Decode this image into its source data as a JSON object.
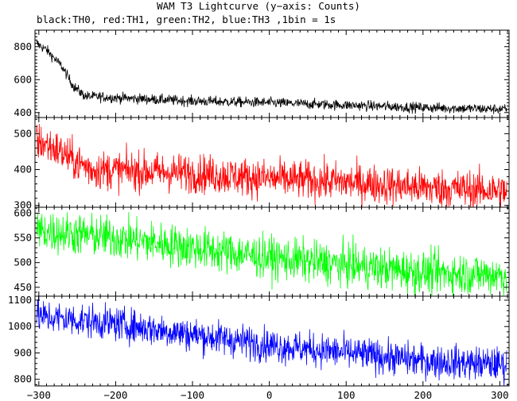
{
  "title": "WAM T3 Lightcurve (y−axis: Counts)",
  "subtitle": "black:TH0, red:TH1, green:TH2, blue:TH3 ,1bin = 1s",
  "chart_data": [
    {
      "type": "line",
      "name": "TH0",
      "color": "#000000",
      "xlim": [
        -305,
        312
      ],
      "ylim": [
        370,
        900
      ],
      "yticks": [
        400,
        600,
        800
      ],
      "baseline_points": [
        [
          -303,
          820
        ],
        [
          -290,
          780
        ],
        [
          -270,
          680
        ],
        [
          -255,
          560
        ],
        [
          -240,
          500
        ],
        [
          -200,
          490
        ],
        [
          -100,
          470
        ],
        [
          0,
          460
        ],
        [
          100,
          445
        ],
        [
          200,
          430
        ],
        [
          309,
          420
        ]
      ],
      "noise": 22
    },
    {
      "type": "line",
      "name": "TH1",
      "color": "#ff0000",
      "xlim": [
        -305,
        312
      ],
      "ylim": [
        295,
        545
      ],
      "yticks": [
        300,
        400,
        500
      ],
      "baseline_points": [
        [
          -303,
          480
        ],
        [
          -280,
          460
        ],
        [
          -250,
          420
        ],
        [
          -230,
          400
        ],
        [
          -100,
          390
        ],
        [
          0,
          375
        ],
        [
          100,
          365
        ],
        [
          200,
          350
        ],
        [
          309,
          340
        ]
      ],
      "noise": 38
    },
    {
      "type": "line",
      "name": "TH2",
      "color": "#00ff00",
      "xlim": [
        -305,
        312
      ],
      "ylim": [
        432,
        612
      ],
      "yticks": [
        450,
        500,
        550,
        600
      ],
      "baseline_points": [
        [
          -303,
          565
        ],
        [
          -200,
          550
        ],
        [
          -100,
          530
        ],
        [
          0,
          510
        ],
        [
          100,
          495
        ],
        [
          200,
          480
        ],
        [
          309,
          475
        ]
      ],
      "noise": 30
    },
    {
      "type": "line",
      "name": "TH3",
      "color": "#0000ff",
      "xlim": [
        -305,
        312
      ],
      "ylim": [
        775,
        1115
      ],
      "yticks": [
        800,
        900,
        1000,
        1100
      ],
      "baseline_points": [
        [
          -303,
          1040
        ],
        [
          -200,
          1010
        ],
        [
          -100,
          970
        ],
        [
          0,
          930
        ],
        [
          100,
          900
        ],
        [
          200,
          870
        ],
        [
          309,
          855
        ]
      ],
      "noise": 45
    }
  ],
  "x_axis": {
    "ticks": [
      -300,
      -200,
      -100,
      0,
      100,
      200,
      300
    ],
    "tick_labels": [
      "−300",
      "−200",
      "−100",
      "0",
      "100",
      "200",
      "300"
    ],
    "minor_step": 10,
    "major_step": 100
  }
}
